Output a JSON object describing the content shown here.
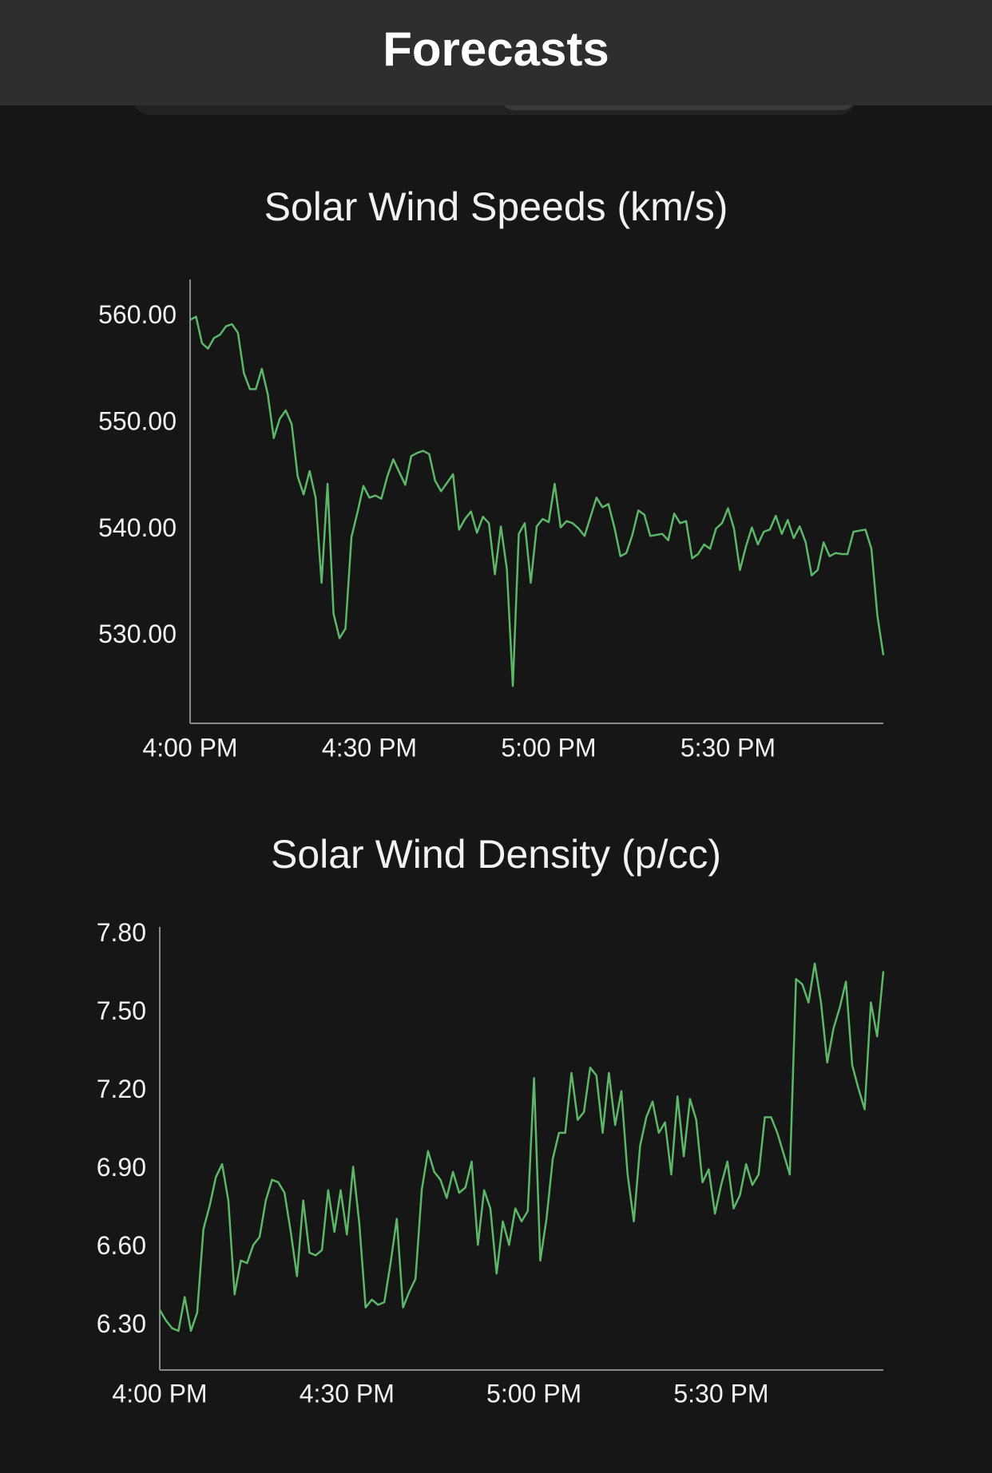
{
  "header": {
    "title": "Forecasts"
  },
  "chart_data": [
    {
      "type": "line",
      "title": "Solar Wind Speeds (km/s)",
      "color": "#5cb868",
      "x": [
        "4:00 PM",
        "4:01 PM",
        "4:02 PM",
        "4:03 PM",
        "4:04 PM",
        "4:05 PM",
        "4:06 PM",
        "4:07 PM",
        "4:08 PM",
        "4:09 PM",
        "4:10 PM",
        "4:11 PM",
        "4:12 PM",
        "4:13 PM",
        "4:14 PM",
        "4:15 PM",
        "4:16 PM",
        "4:17 PM",
        "4:18 PM",
        "4:19 PM",
        "4:20 PM",
        "4:21 PM",
        "4:22 PM",
        "4:23 PM",
        "4:24 PM",
        "4:25 PM",
        "4:26 PM",
        "4:27 PM",
        "4:28 PM",
        "4:29 PM",
        "4:30 PM",
        "4:31 PM",
        "4:32 PM",
        "4:33 PM",
        "4:34 PM",
        "4:35 PM",
        "4:36 PM",
        "4:37 PM",
        "4:38 PM",
        "4:39 PM",
        "4:40 PM",
        "4:41 PM",
        "4:42 PM",
        "4:43 PM",
        "4:44 PM",
        "4:45 PM",
        "4:46 PM",
        "4:47 PM",
        "4:48 PM",
        "4:49 PM",
        "4:50 PM",
        "4:51 PM",
        "4:52 PM",
        "4:53 PM",
        "4:54 PM",
        "4:55 PM",
        "4:56 PM",
        "4:57 PM",
        "4:58 PM",
        "4:59 PM",
        "5:00 PM",
        "5:01 PM",
        "5:02 PM",
        "5:03 PM",
        "5:04 PM",
        "5:05 PM",
        "5:06 PM",
        "5:07 PM",
        "5:08 PM",
        "5:09 PM",
        "5:10 PM",
        "5:11 PM",
        "5:12 PM",
        "5:13 PM",
        "5:14 PM",
        "5:15 PM",
        "5:16 PM",
        "5:17 PM",
        "5:18 PM",
        "5:19 PM",
        "5:20 PM",
        "5:21 PM",
        "5:22 PM",
        "5:23 PM",
        "5:24 PM",
        "5:25 PM",
        "5:26 PM",
        "5:27 PM",
        "5:28 PM",
        "5:29 PM",
        "5:30 PM",
        "5:31 PM",
        "5:32 PM",
        "5:33 PM",
        "5:34 PM",
        "5:35 PM",
        "5:36 PM",
        "5:37 PM",
        "5:38 PM",
        "5:39 PM",
        "5:40 PM",
        "5:41 PM",
        "5:42 PM",
        "5:43 PM",
        "5:44 PM",
        "5:45 PM",
        "5:46 PM",
        "5:47 PM",
        "5:48 PM",
        "5:49 PM",
        "5:50 PM",
        "5:51 PM",
        "5:52 PM",
        "5:53 PM",
        "5:54 PM",
        "5:55 PM",
        "5:56 PM"
      ],
      "values": [
        559.7,
        560,
        557.5,
        557,
        558,
        558.3,
        559.1,
        559.3,
        558.5,
        554.7,
        553.2,
        553.2,
        555.1,
        552.7,
        548.6,
        550.4,
        551.2,
        549.9,
        545,
        543.3,
        545.5,
        543,
        535,
        544.3,
        532.1,
        529.8,
        530.7,
        539.3,
        541.6,
        544.1,
        543,
        543.2,
        542.9,
        545,
        546.6,
        545.4,
        544.2,
        546.9,
        547.2,
        547.4,
        547.1,
        544.6,
        543.6,
        544.4,
        545.2,
        540,
        541,
        541.7,
        539.7,
        541.2,
        540.6,
        535.8,
        540.3,
        536.3,
        525.3,
        539.6,
        540.6,
        535,
        540.3,
        541,
        540.7,
        544.3,
        540.2,
        540.8,
        540.6,
        540.1,
        539.4,
        541.2,
        543,
        542.1,
        542.4,
        540.2,
        537.5,
        537.8,
        539.5,
        541.8,
        541.4,
        539.4,
        539.5,
        539.6,
        539,
        541.5,
        540.6,
        540.8,
        537.3,
        537.7,
        538.6,
        538.2,
        540.1,
        540.6,
        542,
        540.1,
        536.2,
        538.4,
        540.2,
        538.6,
        539.8,
        540,
        541.3,
        539.6,
        540.9,
        539.2,
        540.3,
        538.8,
        535.7,
        536.2,
        538.8,
        537.5,
        537.8,
        537.7,
        537.7,
        539.8,
        539.9,
        540,
        538.2,
        531.9,
        528.2
      ],
      "xlim": [
        "4:00 PM",
        "5:56 PM"
      ],
      "xticks": [
        "4:00 PM",
        "4:30 PM",
        "5:00 PM",
        "5:30 PM"
      ],
      "ylim": [
        521.8,
        563.5
      ],
      "yticks": [
        {
          "value": 530,
          "label": "530.00"
        },
        {
          "value": 540,
          "label": "540.00"
        },
        {
          "value": 550,
          "label": "550.00"
        },
        {
          "value": 560,
          "label": "560.00"
        }
      ]
    },
    {
      "type": "line",
      "title": "Solar Wind Density (p/cc)",
      "color": "#5cb868",
      "x": [
        "4:00 PM",
        "4:01 PM",
        "4:02 PM",
        "4:03 PM",
        "4:04 PM",
        "4:05 PM",
        "4:06 PM",
        "4:07 PM",
        "4:08 PM",
        "4:09 PM",
        "4:10 PM",
        "4:11 PM",
        "4:12 PM",
        "4:13 PM",
        "4:14 PM",
        "4:15 PM",
        "4:16 PM",
        "4:17 PM",
        "4:18 PM",
        "4:19 PM",
        "4:20 PM",
        "4:21 PM",
        "4:22 PM",
        "4:23 PM",
        "4:24 PM",
        "4:25 PM",
        "4:26 PM",
        "4:27 PM",
        "4:28 PM",
        "4:29 PM",
        "4:30 PM",
        "4:31 PM",
        "4:32 PM",
        "4:33 PM",
        "4:34 PM",
        "4:35 PM",
        "4:36 PM",
        "4:37 PM",
        "4:38 PM",
        "4:39 PM",
        "4:40 PM",
        "4:41 PM",
        "4:42 PM",
        "4:43 PM",
        "4:44 PM",
        "4:45 PM",
        "4:46 PM",
        "4:47 PM",
        "4:48 PM",
        "4:49 PM",
        "4:50 PM",
        "4:51 PM",
        "4:52 PM",
        "4:53 PM",
        "4:54 PM",
        "4:55 PM",
        "4:56 PM",
        "4:57 PM",
        "4:58 PM",
        "4:59 PM",
        "5:00 PM",
        "5:01 PM",
        "5:02 PM",
        "5:03 PM",
        "5:04 PM",
        "5:05 PM",
        "5:06 PM",
        "5:07 PM",
        "5:08 PM",
        "5:09 PM",
        "5:10 PM",
        "5:11 PM",
        "5:12 PM",
        "5:13 PM",
        "5:14 PM",
        "5:15 PM",
        "5:16 PM",
        "5:17 PM",
        "5:18 PM",
        "5:19 PM",
        "5:20 PM",
        "5:21 PM",
        "5:22 PM",
        "5:23 PM",
        "5:24 PM",
        "5:25 PM",
        "5:26 PM",
        "5:27 PM",
        "5:28 PM",
        "5:29 PM",
        "5:30 PM",
        "5:31 PM",
        "5:32 PM",
        "5:33 PM",
        "5:34 PM",
        "5:35 PM",
        "5:36 PM",
        "5:37 PM",
        "5:38 PM",
        "5:39 PM",
        "5:40 PM",
        "5:41 PM",
        "5:42 PM",
        "5:43 PM",
        "5:44 PM",
        "5:45 PM",
        "5:46 PM",
        "5:47 PM",
        "5:48 PM",
        "5:49 PM",
        "5:50 PM",
        "5:51 PM",
        "5:52 PM",
        "5:53 PM",
        "5:54 PM",
        "5:55 PM",
        "5:56 PM"
      ],
      "values": [
        6.36,
        6.32,
        6.29,
        6.28,
        6.41,
        6.28,
        6.35,
        6.67,
        6.76,
        6.87,
        6.92,
        6.78,
        6.42,
        6.55,
        6.54,
        6.61,
        6.64,
        6.78,
        6.86,
        6.85,
        6.81,
        6.66,
        6.49,
        6.78,
        6.58,
        6.57,
        6.59,
        6.82,
        6.66,
        6.82,
        6.65,
        6.91,
        6.69,
        6.37,
        6.4,
        6.38,
        6.39,
        6.54,
        6.71,
        6.37,
        6.43,
        6.48,
        6.82,
        6.97,
        6.89,
        6.86,
        6.79,
        6.89,
        6.81,
        6.83,
        6.93,
        6.61,
        6.82,
        6.75,
        6.5,
        6.7,
        6.61,
        6.75,
        6.7,
        6.74,
        7.25,
        6.55,
        6.71,
        6.94,
        7.04,
        7.04,
        7.27,
        7.09,
        7.12,
        7.29,
        7.26,
        7.04,
        7.27,
        7.07,
        7.2,
        6.88,
        6.7,
        6.99,
        7.1,
        7.16,
        7.04,
        7.08,
        6.88,
        7.18,
        6.95,
        7.17,
        7.09,
        6.85,
        6.9,
        6.73,
        6.84,
        6.93,
        6.75,
        6.8,
        6.92,
        6.84,
        6.88,
        7.1,
        7.1,
        7.04,
        6.96,
        6.88,
        7.63,
        7.61,
        7.54,
        7.69,
        7.54,
        7.31,
        7.44,
        7.52,
        7.62,
        7.3,
        7.21,
        7.13,
        7.54,
        7.41,
        7.66
      ],
      "xlim": [
        "4:00 PM",
        "5:56 PM"
      ],
      "xticks": [
        "4:00 PM",
        "4:30 PM",
        "5:00 PM",
        "5:30 PM"
      ],
      "ylim": [
        6.13,
        7.83
      ],
      "yticks": [
        {
          "value": 6.3,
          "label": "6.30"
        },
        {
          "value": 6.6,
          "label": "6.60"
        },
        {
          "value": 6.9,
          "label": "6.90"
        },
        {
          "value": 7.2,
          "label": "7.20"
        },
        {
          "value": 7.5,
          "label": "7.50"
        },
        {
          "value": 7.8,
          "label": "7.80"
        }
      ]
    }
  ]
}
